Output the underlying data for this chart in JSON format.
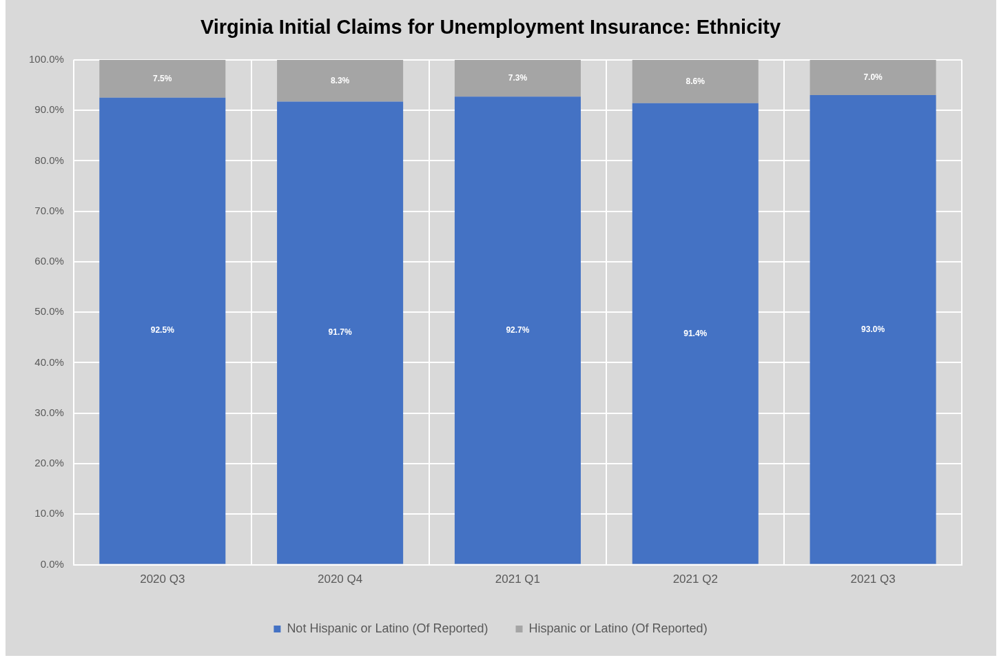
{
  "chart_data": {
    "type": "bar",
    "title": "Virginia Initial Claims for Unemployment Insurance: Ethnicity",
    "categories": [
      "2020 Q3",
      "2020 Q4",
      "2021 Q1",
      "2021 Q2",
      "2021 Q3"
    ],
    "stacked": true,
    "series": [
      {
        "name": "Not Hispanic or Latino (Of Reported)",
        "color": "#4472c4",
        "values": [
          92.5,
          91.7,
          92.7,
          91.4,
          93.0
        ],
        "value_labels": [
          "92.5%",
          "91.7%",
          "92.7%",
          "91.4%",
          "93.0%"
        ]
      },
      {
        "name": "Hispanic or Latino (Of Reported)",
        "color": "#a5a5a5",
        "values": [
          7.5,
          8.3,
          7.3,
          8.6,
          7.0
        ],
        "value_labels": [
          "7.5%",
          "8.3%",
          "7.3%",
          "8.6%",
          "7.0%"
        ]
      }
    ],
    "ylim": [
      0,
      100
    ],
    "yticks": [
      {
        "value": 0,
        "label": "0.0%"
      },
      {
        "value": 10,
        "label": "10.0%"
      },
      {
        "value": 20,
        "label": "20.0%"
      },
      {
        "value": 30,
        "label": "30.0%"
      },
      {
        "value": 40,
        "label": "40.0%"
      },
      {
        "value": 50,
        "label": "50.0%"
      },
      {
        "value": 60,
        "label": "60.0%"
      },
      {
        "value": 70,
        "label": "70.0%"
      },
      {
        "value": 80,
        "label": "80.0%"
      },
      {
        "value": 90,
        "label": "90.0%"
      },
      {
        "value": 100,
        "label": "100.0%"
      }
    ],
    "grid": true,
    "legend": "bottom"
  }
}
